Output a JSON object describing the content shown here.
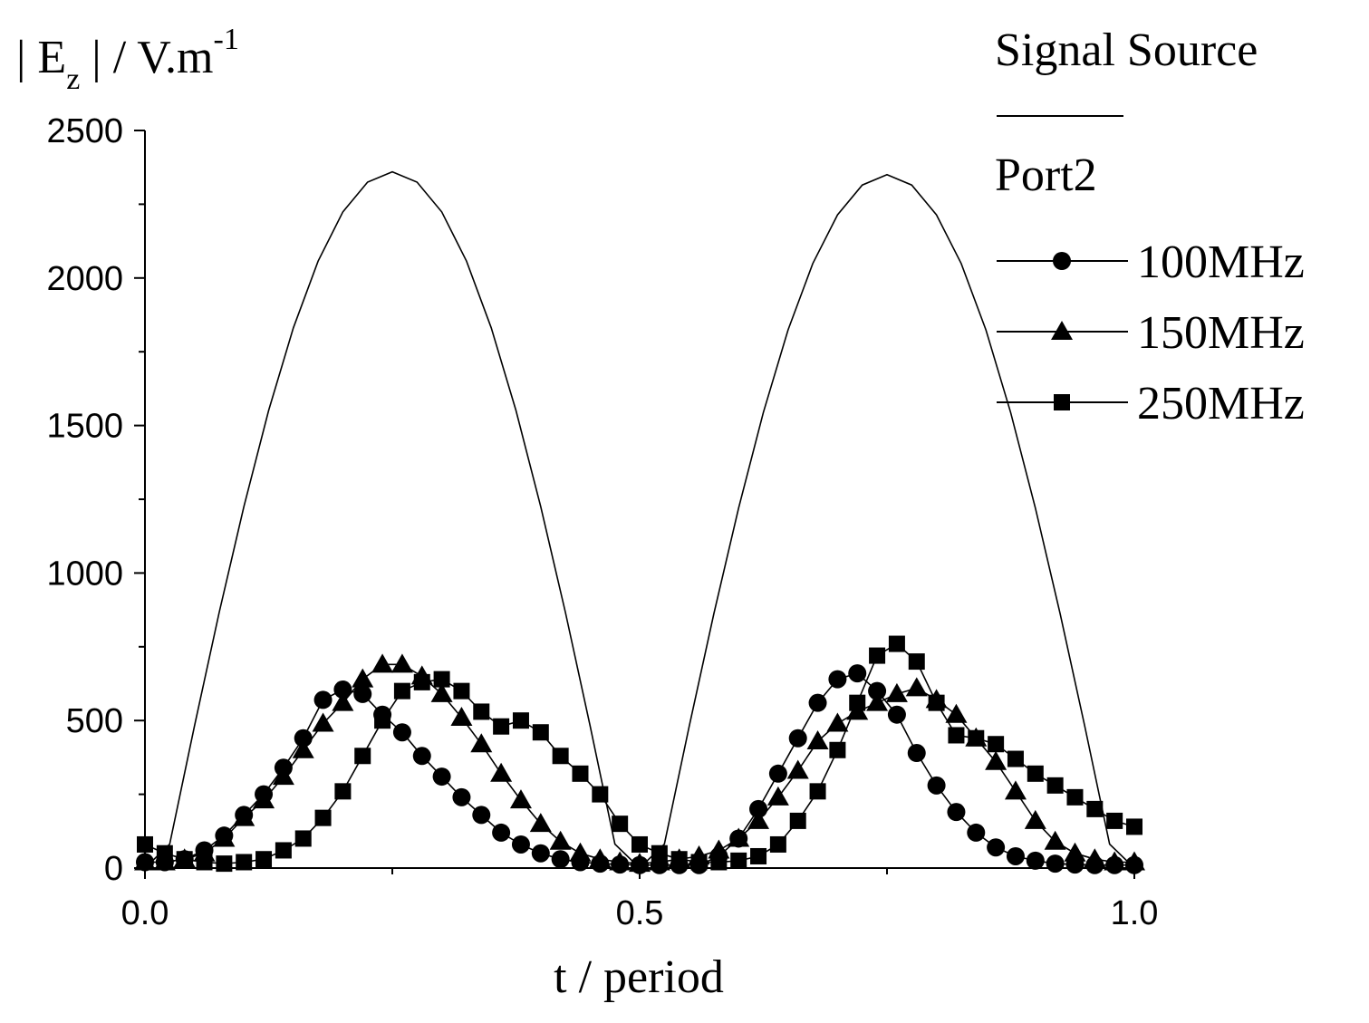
{
  "chart_data": {
    "type": "line",
    "ylabel": [
      "| E",
      "z",
      " | / V.m",
      "-1"
    ],
    "xlabel": "t / period",
    "legend_group_title": "Port2",
    "xlim": [
      0,
      1
    ],
    "ylim": [
      0,
      2500
    ],
    "xticks": [
      {
        "value": 0,
        "label": "0.0"
      },
      0.5,
      {
        "value": 1,
        "label": "1.0"
      }
    ],
    "xminorticks": [
      0.25,
      0.75
    ],
    "yticks": [
      0,
      500,
      1000,
      1500,
      2000,
      2500
    ],
    "yminorticks": [
      250,
      750,
      1250,
      1750,
      2250
    ],
    "series": [
      {
        "name": "Signal Source",
        "color": "#000000",
        "x": [
          0,
          0.025,
          0.05,
          0.075,
          0.1,
          0.125,
          0.15,
          0.175,
          0.2,
          0.225,
          0.25,
          0.275,
          0.3,
          0.325,
          0.35,
          0.375,
          0.4,
          0.425,
          0.45,
          0.475,
          0.5,
          0.525,
          0.55,
          0.575,
          0.6,
          0.625,
          0.65,
          0.675,
          0.7,
          0.725,
          0.75,
          0.775,
          0.8,
          0.825,
          0.85,
          0.875,
          0.9,
          0.925,
          0.95,
          0.975,
          1
        ],
        "values": [
          0,
          81,
          481,
          866,
          1225,
          1551,
          1831,
          2057,
          2224,
          2325,
          2360,
          2325,
          2224,
          2057,
          1831,
          1551,
          1225,
          866,
          481,
          81,
          0,
          81,
          479,
          862,
          1220,
          1544,
          1824,
          2049,
          2214,
          2315,
          2350,
          2315,
          2214,
          2049,
          1824,
          1544,
          1220,
          862,
          479,
          81,
          0
        ]
      },
      {
        "name": "100MHz",
        "color": "#000000",
        "marker": "circle",
        "x": [
          0,
          0.02,
          0.04,
          0.06,
          0.08,
          0.1,
          0.12,
          0.14,
          0.16,
          0.18,
          0.2,
          0.22,
          0.24,
          0.26,
          0.28,
          0.3,
          0.32,
          0.34,
          0.36,
          0.38,
          0.4,
          0.42,
          0.44,
          0.46,
          0.48,
          0.5,
          0.52,
          0.54,
          0.56,
          0.58,
          0.6,
          0.62,
          0.64,
          0.66,
          0.68,
          0.7,
          0.72,
          0.74,
          0.76,
          0.78,
          0.8,
          0.82,
          0.84,
          0.86,
          0.88,
          0.9,
          0.92,
          0.94,
          0.96,
          0.98,
          1
        ],
        "values": [
          20,
          20,
          30,
          60,
          110,
          180,
          250,
          340,
          440,
          570,
          605,
          590,
          520,
          460,
          380,
          310,
          240,
          180,
          120,
          80,
          50,
          30,
          20,
          15,
          12,
          10,
          10,
          10,
          10,
          40,
          100,
          200,
          320,
          440,
          560,
          640,
          660,
          600,
          520,
          390,
          280,
          190,
          120,
          70,
          40,
          25,
          15,
          12,
          10,
          10,
          10
        ]
      },
      {
        "name": "150MHz",
        "color": "#000000",
        "marker": "triangle",
        "x": [
          0,
          0.02,
          0.04,
          0.06,
          0.08,
          0.1,
          0.12,
          0.14,
          0.16,
          0.18,
          0.2,
          0.22,
          0.24,
          0.26,
          0.28,
          0.3,
          0.32,
          0.34,
          0.36,
          0.38,
          0.4,
          0.42,
          0.44,
          0.46,
          0.48,
          0.5,
          0.52,
          0.54,
          0.56,
          0.58,
          0.6,
          0.62,
          0.64,
          0.66,
          0.68,
          0.7,
          0.72,
          0.74,
          0.76,
          0.78,
          0.8,
          0.82,
          0.84,
          0.86,
          0.88,
          0.9,
          0.92,
          0.94,
          0.96,
          0.98,
          1
        ],
        "values": [
          20,
          20,
          30,
          50,
          100,
          170,
          230,
          310,
          400,
          490,
          560,
          640,
          690,
          690,
          650,
          590,
          510,
          420,
          320,
          230,
          150,
          90,
          50,
          30,
          20,
          15,
          20,
          30,
          40,
          60,
          100,
          160,
          240,
          330,
          430,
          490,
          530,
          560,
          590,
          610,
          570,
          520,
          440,
          360,
          260,
          160,
          90,
          50,
          30,
          20,
          20
        ]
      },
      {
        "name": "250MHz",
        "color": "#000000",
        "marker": "square",
        "x": [
          0,
          0.02,
          0.04,
          0.06,
          0.08,
          0.1,
          0.12,
          0.14,
          0.16,
          0.18,
          0.2,
          0.22,
          0.24,
          0.26,
          0.28,
          0.3,
          0.32,
          0.34,
          0.36,
          0.38,
          0.4,
          0.42,
          0.44,
          0.46,
          0.48,
          0.5,
          0.52,
          0.54,
          0.56,
          0.58,
          0.6,
          0.62,
          0.64,
          0.66,
          0.68,
          0.7,
          0.72,
          0.74,
          0.76,
          0.78,
          0.8,
          0.82,
          0.84,
          0.86,
          0.88,
          0.9,
          0.92,
          0.94,
          0.96,
          0.98,
          1
        ],
        "values": [
          80,
          50,
          30,
          20,
          15,
          20,
          30,
          60,
          100,
          170,
          260,
          380,
          500,
          600,
          630,
          640,
          600,
          530,
          480,
          500,
          460,
          380,
          320,
          250,
          150,
          80,
          50,
          30,
          20,
          20,
          25,
          40,
          80,
          160,
          260,
          400,
          560,
          720,
          760,
          700,
          560,
          450,
          440,
          420,
          370,
          320,
          280,
          240,
          200,
          160,
          140
        ]
      }
    ]
  }
}
